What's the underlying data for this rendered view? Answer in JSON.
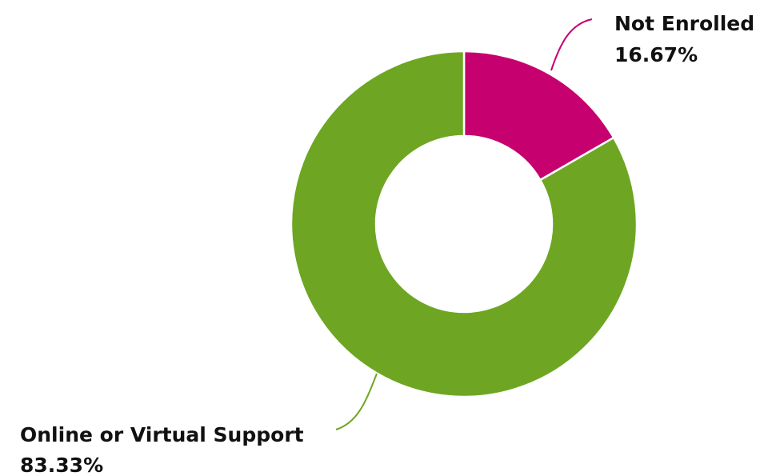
{
  "chart_data": {
    "type": "pie",
    "title": "",
    "donut": true,
    "legend": "none",
    "slices": [
      {
        "label": "Not Enrolled",
        "value": 16.67,
        "value_label": "16.67%",
        "color": "#c6006f"
      },
      {
        "label": "Online or Virtual Support",
        "value": 83.33,
        "value_label": "83.33%",
        "color": "#6ea623"
      }
    ]
  }
}
